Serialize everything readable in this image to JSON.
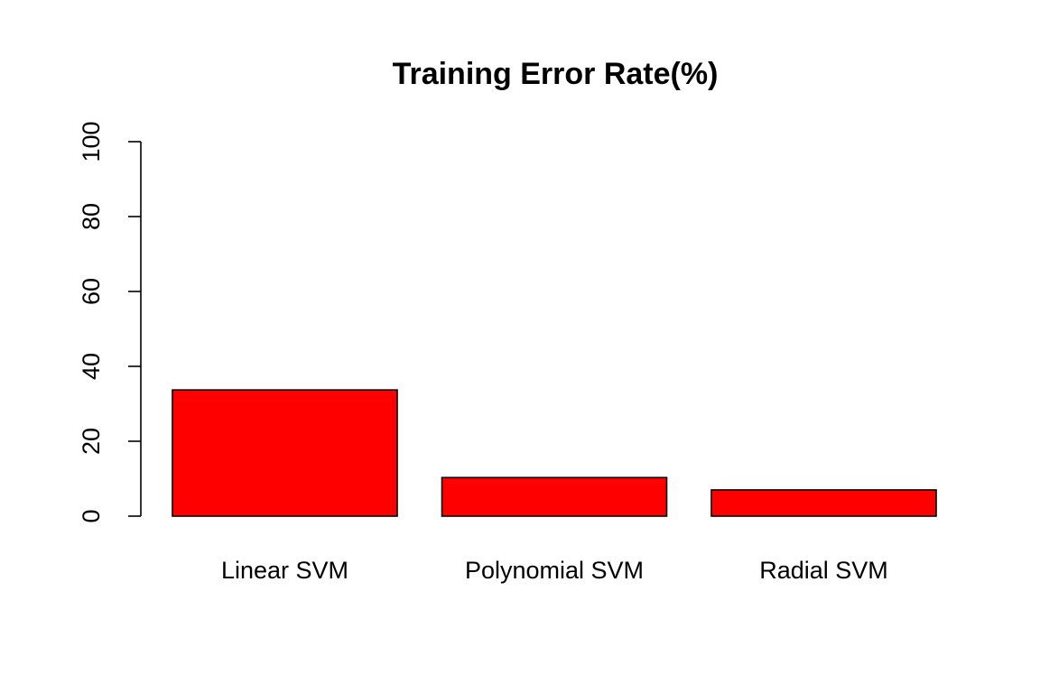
{
  "chart_data": {
    "type": "bar",
    "title": "Training Error Rate(%)",
    "xlabel": "",
    "ylabel": "",
    "categories": [
      "Linear SVM",
      "Polynomial SVM",
      "Radial SVM"
    ],
    "values": [
      33.7,
      10.3,
      7.0
    ],
    "ylim": [
      0,
      100
    ],
    "yticks": [
      0,
      20,
      40,
      60,
      80,
      100
    ],
    "ytick_labels": [
      "0",
      "20",
      "40",
      "60",
      "80",
      "100"
    ],
    "bar_color": "#ff0000",
    "bar_border_color": "#000000",
    "grid": false,
    "legend": "none"
  }
}
